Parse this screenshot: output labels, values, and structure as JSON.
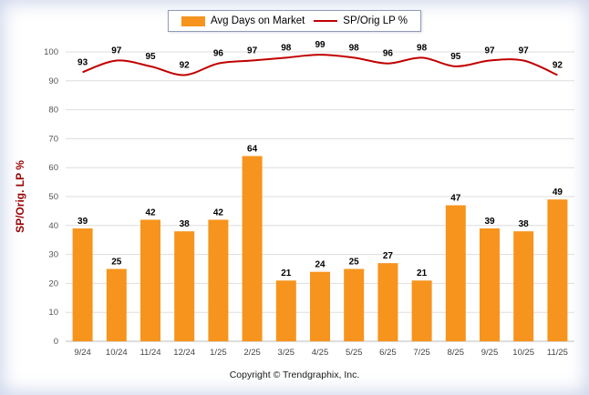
{
  "legend": {
    "bar_label": "Avg Days on Market",
    "line_label": "SP/Orig LP %"
  },
  "footer": {
    "copyright": "Copyright © Trendgraphix, Inc."
  },
  "colors": {
    "bar": "#F7941D",
    "line": "#C00000",
    "ylabel": "#990000",
    "grid": "#dddddd",
    "baseline": "#bbbbbb",
    "tick_text": "#555555",
    "value_text": "#000000"
  },
  "chart_data": {
    "type": "bar",
    "categories": [
      "9/24",
      "10/24",
      "11/24",
      "12/24",
      "1/25",
      "2/25",
      "3/25",
      "4/25",
      "5/25",
      "6/25",
      "7/25",
      "8/25",
      "9/25",
      "10/25",
      "11/25"
    ],
    "series": [
      {
        "name": "Avg Days on Market",
        "type": "bar",
        "values": [
          39,
          25,
          42,
          38,
          42,
          64,
          21,
          24,
          25,
          27,
          21,
          47,
          39,
          38,
          49
        ]
      },
      {
        "name": "SP/Orig LP %",
        "type": "line",
        "values": [
          93,
          97,
          95,
          92,
          96,
          97,
          98,
          99,
          98,
          96,
          98,
          95,
          97,
          97,
          92
        ]
      }
    ],
    "title": "",
    "xlabel": "",
    "ylabel": "SP/Orig. LP %",
    "ylim": [
      0,
      100
    ],
    "yticks": [
      0,
      10,
      20,
      30,
      40,
      50,
      60,
      70,
      80,
      90,
      100
    ],
    "grid": true,
    "legend_position": "top"
  }
}
